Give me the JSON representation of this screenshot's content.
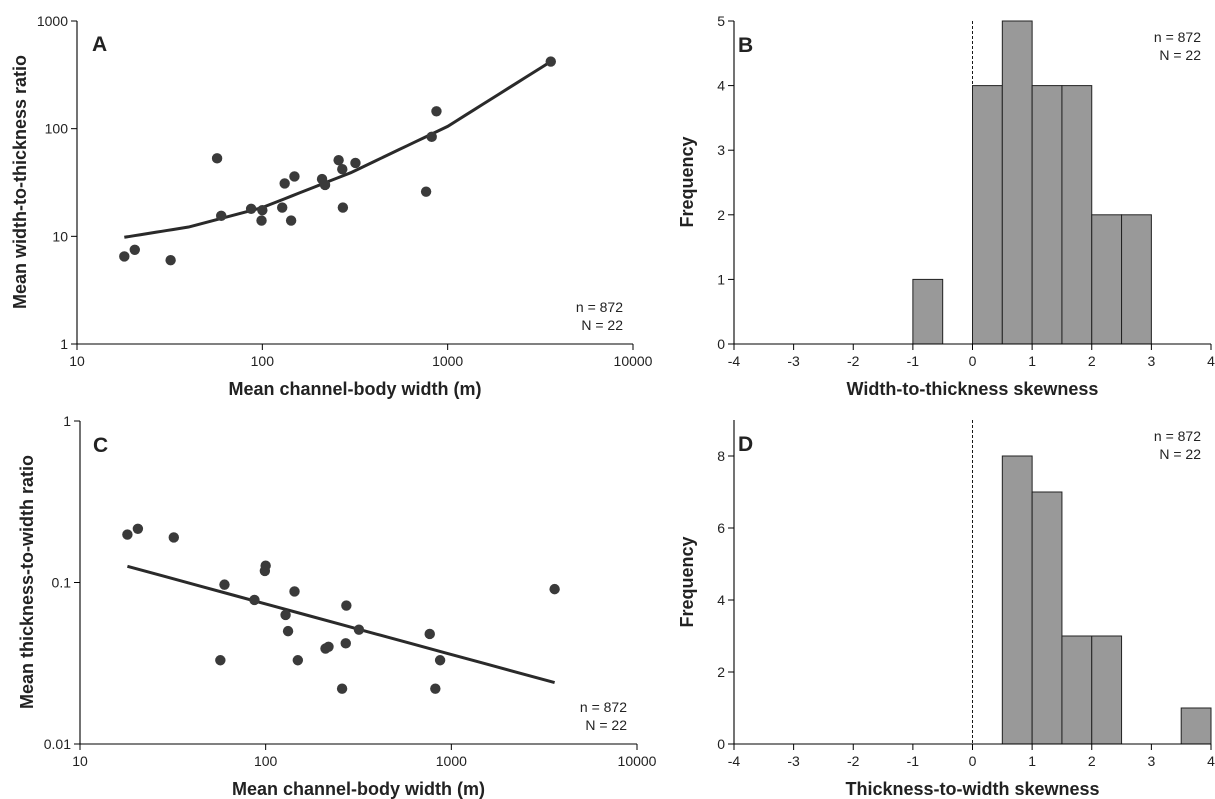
{
  "chart_data": [
    {
      "panel": "A",
      "type": "scatter",
      "xlabel": "Mean channel-body width (m)",
      "ylabel": "Mean width-to-thickness ratio",
      "xscale": "log",
      "yscale": "log",
      "xlim": [
        10,
        10000
      ],
      "ylim": [
        1,
        1000
      ],
      "xticks": [
        "10",
        "100",
        "1000",
        "10000"
      ],
      "yticks": [
        "1",
        "10",
        "100",
        "1000"
      ],
      "annotations": [
        "n = 872",
        "N = 22"
      ],
      "points": [
        {
          "x": 18,
          "y": 6.5
        },
        {
          "x": 20.5,
          "y": 7.5
        },
        {
          "x": 32,
          "y": 6
        },
        {
          "x": 57,
          "y": 53
        },
        {
          "x": 60,
          "y": 15.5
        },
        {
          "x": 87,
          "y": 18
        },
        {
          "x": 99,
          "y": 14
        },
        {
          "x": 100,
          "y": 17.5
        },
        {
          "x": 128,
          "y": 18.5
        },
        {
          "x": 132,
          "y": 31
        },
        {
          "x": 143,
          "y": 14
        },
        {
          "x": 149,
          "y": 36
        },
        {
          "x": 210,
          "y": 34
        },
        {
          "x": 218,
          "y": 30
        },
        {
          "x": 258,
          "y": 51
        },
        {
          "x": 270,
          "y": 42
        },
        {
          "x": 272,
          "y": 18.5
        },
        {
          "x": 318,
          "y": 48
        },
        {
          "x": 765,
          "y": 26
        },
        {
          "x": 820,
          "y": 84
        },
        {
          "x": 870,
          "y": 145
        },
        {
          "x": 3600,
          "y": 420
        }
      ],
      "fit_line": [
        {
          "x": 18,
          "y": 9.8
        },
        {
          "x": 40,
          "y": 12.2
        },
        {
          "x": 100,
          "y": 18.5
        },
        {
          "x": 300,
          "y": 39
        },
        {
          "x": 1000,
          "y": 105
        },
        {
          "x": 3600,
          "y": 420
        }
      ]
    },
    {
      "panel": "B",
      "type": "bar",
      "xlabel": "Width-to-thickness skewness",
      "ylabel": "Frequency",
      "xlim": [
        -4,
        4
      ],
      "ylim": [
        0,
        5
      ],
      "xticks": [
        "-4",
        "-3",
        "-2",
        "-1",
        "0",
        "1",
        "2",
        "3",
        "4"
      ],
      "yticks": [
        "0",
        "1",
        "2",
        "3",
        "4",
        "5"
      ],
      "annotations": [
        "n = 872",
        "N = 22"
      ],
      "bins": [
        {
          "x0": -1,
          "x1": -0.5,
          "count": 1
        },
        {
          "x0": 0,
          "x1": 0.5,
          "count": 4
        },
        {
          "x0": 0.5,
          "x1": 1,
          "count": 5
        },
        {
          "x0": 1,
          "x1": 1.5,
          "count": 4
        },
        {
          "x0": 1.5,
          "x1": 2,
          "count": 4
        },
        {
          "x0": 2,
          "x1": 2.5,
          "count": 2
        },
        {
          "x0": 2.5,
          "x1": 3,
          "count": 2
        }
      ]
    },
    {
      "panel": "C",
      "type": "scatter",
      "xlabel": "Mean channel-body width (m)",
      "ylabel": "Mean thickness-to-width ratio",
      "xscale": "log",
      "yscale": "log",
      "xlim": [
        10,
        10000
      ],
      "ylim": [
        0.01,
        1
      ],
      "xticks": [
        "10",
        "100",
        "1000",
        "10000"
      ],
      "yticks": [
        "0.01",
        "0.1",
        "1"
      ],
      "annotations": [
        "n = 872",
        "N = 22"
      ],
      "points": [
        {
          "x": 18,
          "y": 0.198
        },
        {
          "x": 20.5,
          "y": 0.215
        },
        {
          "x": 32,
          "y": 0.19
        },
        {
          "x": 57,
          "y": 0.033
        },
        {
          "x": 60,
          "y": 0.097
        },
        {
          "x": 87,
          "y": 0.078
        },
        {
          "x": 99,
          "y": 0.118
        },
        {
          "x": 100,
          "y": 0.127
        },
        {
          "x": 128,
          "y": 0.063
        },
        {
          "x": 132,
          "y": 0.05
        },
        {
          "x": 143,
          "y": 0.088
        },
        {
          "x": 149,
          "y": 0.033
        },
        {
          "x": 210,
          "y": 0.039
        },
        {
          "x": 218,
          "y": 0.04
        },
        {
          "x": 258,
          "y": 0.022
        },
        {
          "x": 270,
          "y": 0.042
        },
        {
          "x": 272,
          "y": 0.072
        },
        {
          "x": 318,
          "y": 0.051
        },
        {
          "x": 765,
          "y": 0.048
        },
        {
          "x": 820,
          "y": 0.022
        },
        {
          "x": 870,
          "y": 0.033
        },
        {
          "x": 3600,
          "y": 0.091
        }
      ],
      "fit_line": [
        {
          "x": 18,
          "y": 0.126
        },
        {
          "x": 3600,
          "y": 0.024
        }
      ]
    },
    {
      "panel": "D",
      "type": "bar",
      "xlabel": "Thickness-to-width skewness",
      "ylabel": "Frequency",
      "xlim": [
        -4,
        4
      ],
      "ylim": [
        0,
        9
      ],
      "xticks": [
        "-4",
        "-3",
        "-2",
        "-1",
        "0",
        "1",
        "2",
        "3",
        "4"
      ],
      "yticks": [
        "0",
        "2",
        "4",
        "6",
        "8"
      ],
      "annotations": [
        "n = 872",
        "N = 22"
      ],
      "bins": [
        {
          "x0": 0.5,
          "x1": 1,
          "count": 8
        },
        {
          "x0": 1,
          "x1": 1.5,
          "count": 7
        },
        {
          "x0": 1.5,
          "x1": 2,
          "count": 3
        },
        {
          "x0": 2,
          "x1": 2.5,
          "count": 3
        },
        {
          "x0": 3.5,
          "x1": 4,
          "count": 1
        }
      ]
    }
  ]
}
